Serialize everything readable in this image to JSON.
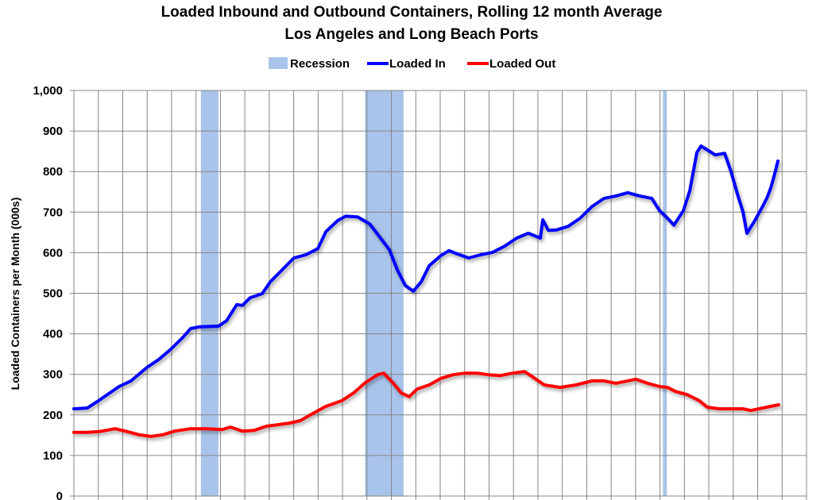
{
  "chart_data": {
    "type": "line",
    "title": "Loaded Inbound and Outbound Containers, Rolling 12 month Average",
    "subtitle": "Los Angeles and Long Beach Ports",
    "xlabel": "",
    "ylabel": "Loaded Containers per Month (000s)",
    "xlim": [
      1996,
      2026
    ],
    "ylim": [
      0,
      1000
    ],
    "yticks": [
      0,
      100,
      200,
      300,
      400,
      500,
      600,
      700,
      800,
      900,
      1000
    ],
    "ytick_labels": [
      "0",
      "100",
      "200",
      "300",
      "400",
      "500",
      "600",
      "700",
      "800",
      "900",
      "1,000"
    ],
    "grid": true,
    "legend_placement": "top",
    "recession": {
      "name": "Recession",
      "color": "#a9c4ea",
      "periods": [
        [
          2001.2,
          2001.92
        ],
        [
          2007.92,
          2009.5
        ],
        [
          2020.12,
          2020.28
        ]
      ]
    },
    "series": [
      {
        "name": "Loaded In",
        "color": "#0000ff",
        "x": [
          1996.0,
          1996.55,
          1997.01,
          1997.85,
          1998.34,
          1998.99,
          1999.48,
          1999.97,
          2000.46,
          2000.78,
          2001.11,
          2001.92,
          2002.25,
          2002.67,
          2002.9,
          2003.22,
          2003.71,
          2004.04,
          2004.53,
          2005.01,
          2005.5,
          2005.99,
          2006.32,
          2006.8,
          2007.13,
          2007.62,
          2008.11,
          2008.43,
          2008.92,
          2009.24,
          2009.57,
          2009.9,
          2010.22,
          2010.55,
          2011.03,
          2011.36,
          2011.69,
          2012.17,
          2012.66,
          2013.15,
          2013.64,
          2014.13,
          2014.61,
          2015.1,
          2015.2,
          2015.43,
          2015.75,
          2016.24,
          2016.73,
          2017.22,
          2017.71,
          2018.19,
          2018.68,
          2019.17,
          2019.66,
          2019.98,
          2020.31,
          2020.57,
          2020.96,
          2021.22,
          2021.51,
          2021.68,
          2022.0,
          2022.26,
          2022.65,
          2022.91,
          2023.17,
          2023.4,
          2023.56,
          2023.89,
          2024.21,
          2024.38,
          2024.54,
          2024.7,
          2024.83
        ],
        "y": [
          215,
          217,
          235,
          270,
          284,
          317,
          337,
          362,
          391,
          413,
          417,
          419,
          432,
          472,
          470,
          489,
          499,
          528,
          558,
          587,
          595,
          610,
          652,
          679,
          690,
          688,
          671,
          646,
          607,
          558,
          519,
          505,
          528,
          568,
          593,
          605,
          597,
          587,
          595,
          601,
          616,
          636,
          648,
          636,
          681,
          655,
          656,
          665,
          685,
          714,
          734,
          740,
          748,
          740,
          734,
          704,
          685,
          668,
          704,
          753,
          847,
          863,
          851,
          841,
          845,
          800,
          745,
          700,
          648,
          680,
          715,
          735,
          760,
          795,
          826
        ]
      },
      {
        "name": "Loaded Out",
        "color": "#ff0000",
        "x": [
          1996.0,
          1996.55,
          1997.04,
          1997.69,
          1998.18,
          1998.67,
          1999.16,
          1999.64,
          2000.13,
          2000.78,
          2001.43,
          2002.08,
          2002.41,
          2002.9,
          2003.39,
          2003.87,
          2004.36,
          2004.85,
          2005.27,
          2005.83,
          2006.31,
          2006.97,
          2007.45,
          2007.94,
          2008.43,
          2008.69,
          2009.08,
          2009.41,
          2009.73,
          2010.06,
          2010.55,
          2011.03,
          2011.52,
          2012.01,
          2012.5,
          2012.99,
          2013.47,
          2013.96,
          2014.45,
          2014.78,
          2015.26,
          2015.91,
          2016.56,
          2017.21,
          2017.71,
          2018.19,
          2018.68,
          2019.01,
          2019.49,
          2019.98,
          2020.31,
          2020.63,
          2021.12,
          2021.61,
          2021.94,
          2022.42,
          2022.91,
          2023.4,
          2023.72,
          2024.21,
          2024.7,
          2024.86
        ],
        "y": [
          157,
          157,
          159,
          166,
          159,
          151,
          147,
          151,
          160,
          166,
          166,
          164,
          170,
          160,
          162,
          172,
          176,
          180,
          186,
          205,
          221,
          235,
          254,
          280,
          299,
          303,
          278,
          254,
          245,
          264,
          274,
          290,
          299,
          303,
          303,
          299,
          297,
          303,
          307,
          294,
          274,
          268,
          274,
          284,
          284,
          278,
          284,
          288,
          278,
          270,
          268,
          258,
          250,
          235,
          219,
          215,
          215,
          215,
          211,
          217,
          223,
          225
        ]
      }
    ]
  }
}
